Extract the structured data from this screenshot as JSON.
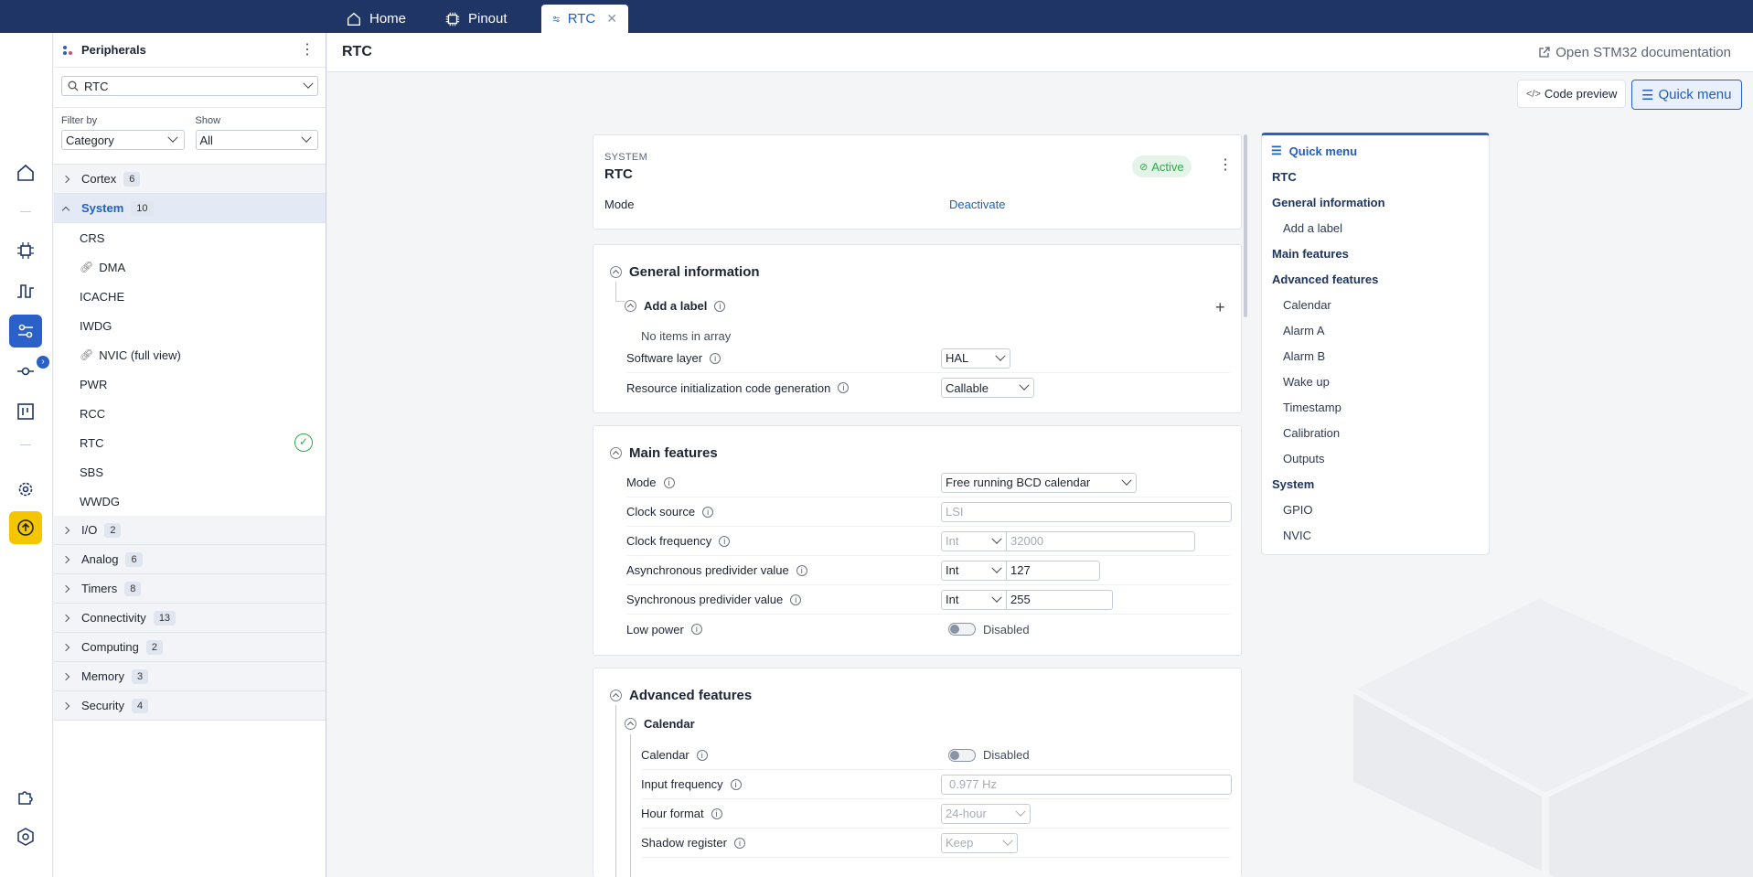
{
  "tabs": [
    {
      "label": "Home",
      "icon": "home-icon"
    },
    {
      "label": "Pinout",
      "icon": "chip-icon"
    },
    {
      "label": "RTC",
      "icon": "peripheral-config-icon",
      "active": true
    }
  ],
  "sidebar": {
    "title": "Peripherals",
    "search_value": "RTC",
    "filter_by_label": "Filter by",
    "filter_by_value": "Category",
    "show_label": "Show",
    "show_value": "All",
    "categories": [
      {
        "name": "Cortex",
        "count": "6"
      },
      {
        "name": "System",
        "count": "10",
        "open": true
      },
      {
        "name": "I/O",
        "count": "2"
      },
      {
        "name": "Analog",
        "count": "6"
      },
      {
        "name": "Timers",
        "count": "8"
      },
      {
        "name": "Connectivity",
        "count": "13"
      },
      {
        "name": "Computing",
        "count": "2"
      },
      {
        "name": "Memory",
        "count": "3"
      },
      {
        "name": "Security",
        "count": "4"
      }
    ],
    "system_items": [
      "CRS",
      "DMA",
      "ICACHE",
      "IWDG",
      "NVIC (full view)",
      "PWR",
      "RCC",
      "RTC",
      "SBS",
      "WWDG"
    ]
  },
  "header": {
    "title": "RTC",
    "doc_link": "Open STM32 documentation"
  },
  "actions": {
    "code_preview": "Code preview",
    "quick_menu": "Quick menu"
  },
  "summary": {
    "category": "SYSTEM",
    "name": "RTC",
    "status": "Active",
    "mode_label": "Mode",
    "mode_action": "Deactivate"
  },
  "general": {
    "title": "General information",
    "add_label": "Add a label",
    "no_items": "No items in array",
    "software_layer_label": "Software layer",
    "software_layer_value": "HAL",
    "resource_init_label": "Resource initialization code generation",
    "resource_init_value": "Callable"
  },
  "main_features": {
    "title": "Main features",
    "mode_label": "Mode",
    "mode_value": "Free running BCD calendar",
    "clock_source_label": "Clock source",
    "clock_source_value": "LSI",
    "clock_freq_label": "Clock frequency",
    "clock_freq_type": "Int",
    "clock_freq_value": "32000",
    "async_label": "Asynchronous predivider value",
    "async_type": "Int",
    "async_value": "127",
    "sync_label": "Synchronous predivider value",
    "sync_type": "Int",
    "sync_value": "255",
    "low_power_label": "Low power",
    "low_power_value": "Disabled"
  },
  "advanced": {
    "title": "Advanced features",
    "calendar_title": "Calendar",
    "calendar_label": "Calendar",
    "calendar_value": "Disabled",
    "input_freq_label": "Input frequency",
    "input_freq_value": "0.977 Hz",
    "hour_format_label": "Hour format",
    "hour_format_value": "24-hour",
    "shadow_label": "Shadow register",
    "shadow_value": "Keep"
  },
  "quick_menu": {
    "title": "Quick menu",
    "items": [
      {
        "label": "RTC",
        "level": "top"
      },
      {
        "label": "General information",
        "level": "top"
      },
      {
        "label": "Add a label",
        "level": "sub"
      },
      {
        "label": "Main features",
        "level": "top"
      },
      {
        "label": "Advanced features",
        "level": "top"
      },
      {
        "label": "Calendar",
        "level": "sub"
      },
      {
        "label": "Alarm A",
        "level": "sub"
      },
      {
        "label": "Alarm B",
        "level": "sub"
      },
      {
        "label": "Wake up",
        "level": "sub"
      },
      {
        "label": "Timestamp",
        "level": "sub"
      },
      {
        "label": "Calibration",
        "level": "sub"
      },
      {
        "label": "Outputs",
        "level": "sub"
      },
      {
        "label": "System",
        "level": "top"
      },
      {
        "label": "GPIO",
        "level": "sub"
      },
      {
        "label": "NVIC",
        "level": "sub"
      }
    ]
  },
  "colors": {
    "topbar": "#1f3566",
    "accent": "#2a60c7",
    "active_green": "#2eaa4a",
    "rail_highlight": "#f5c500"
  }
}
